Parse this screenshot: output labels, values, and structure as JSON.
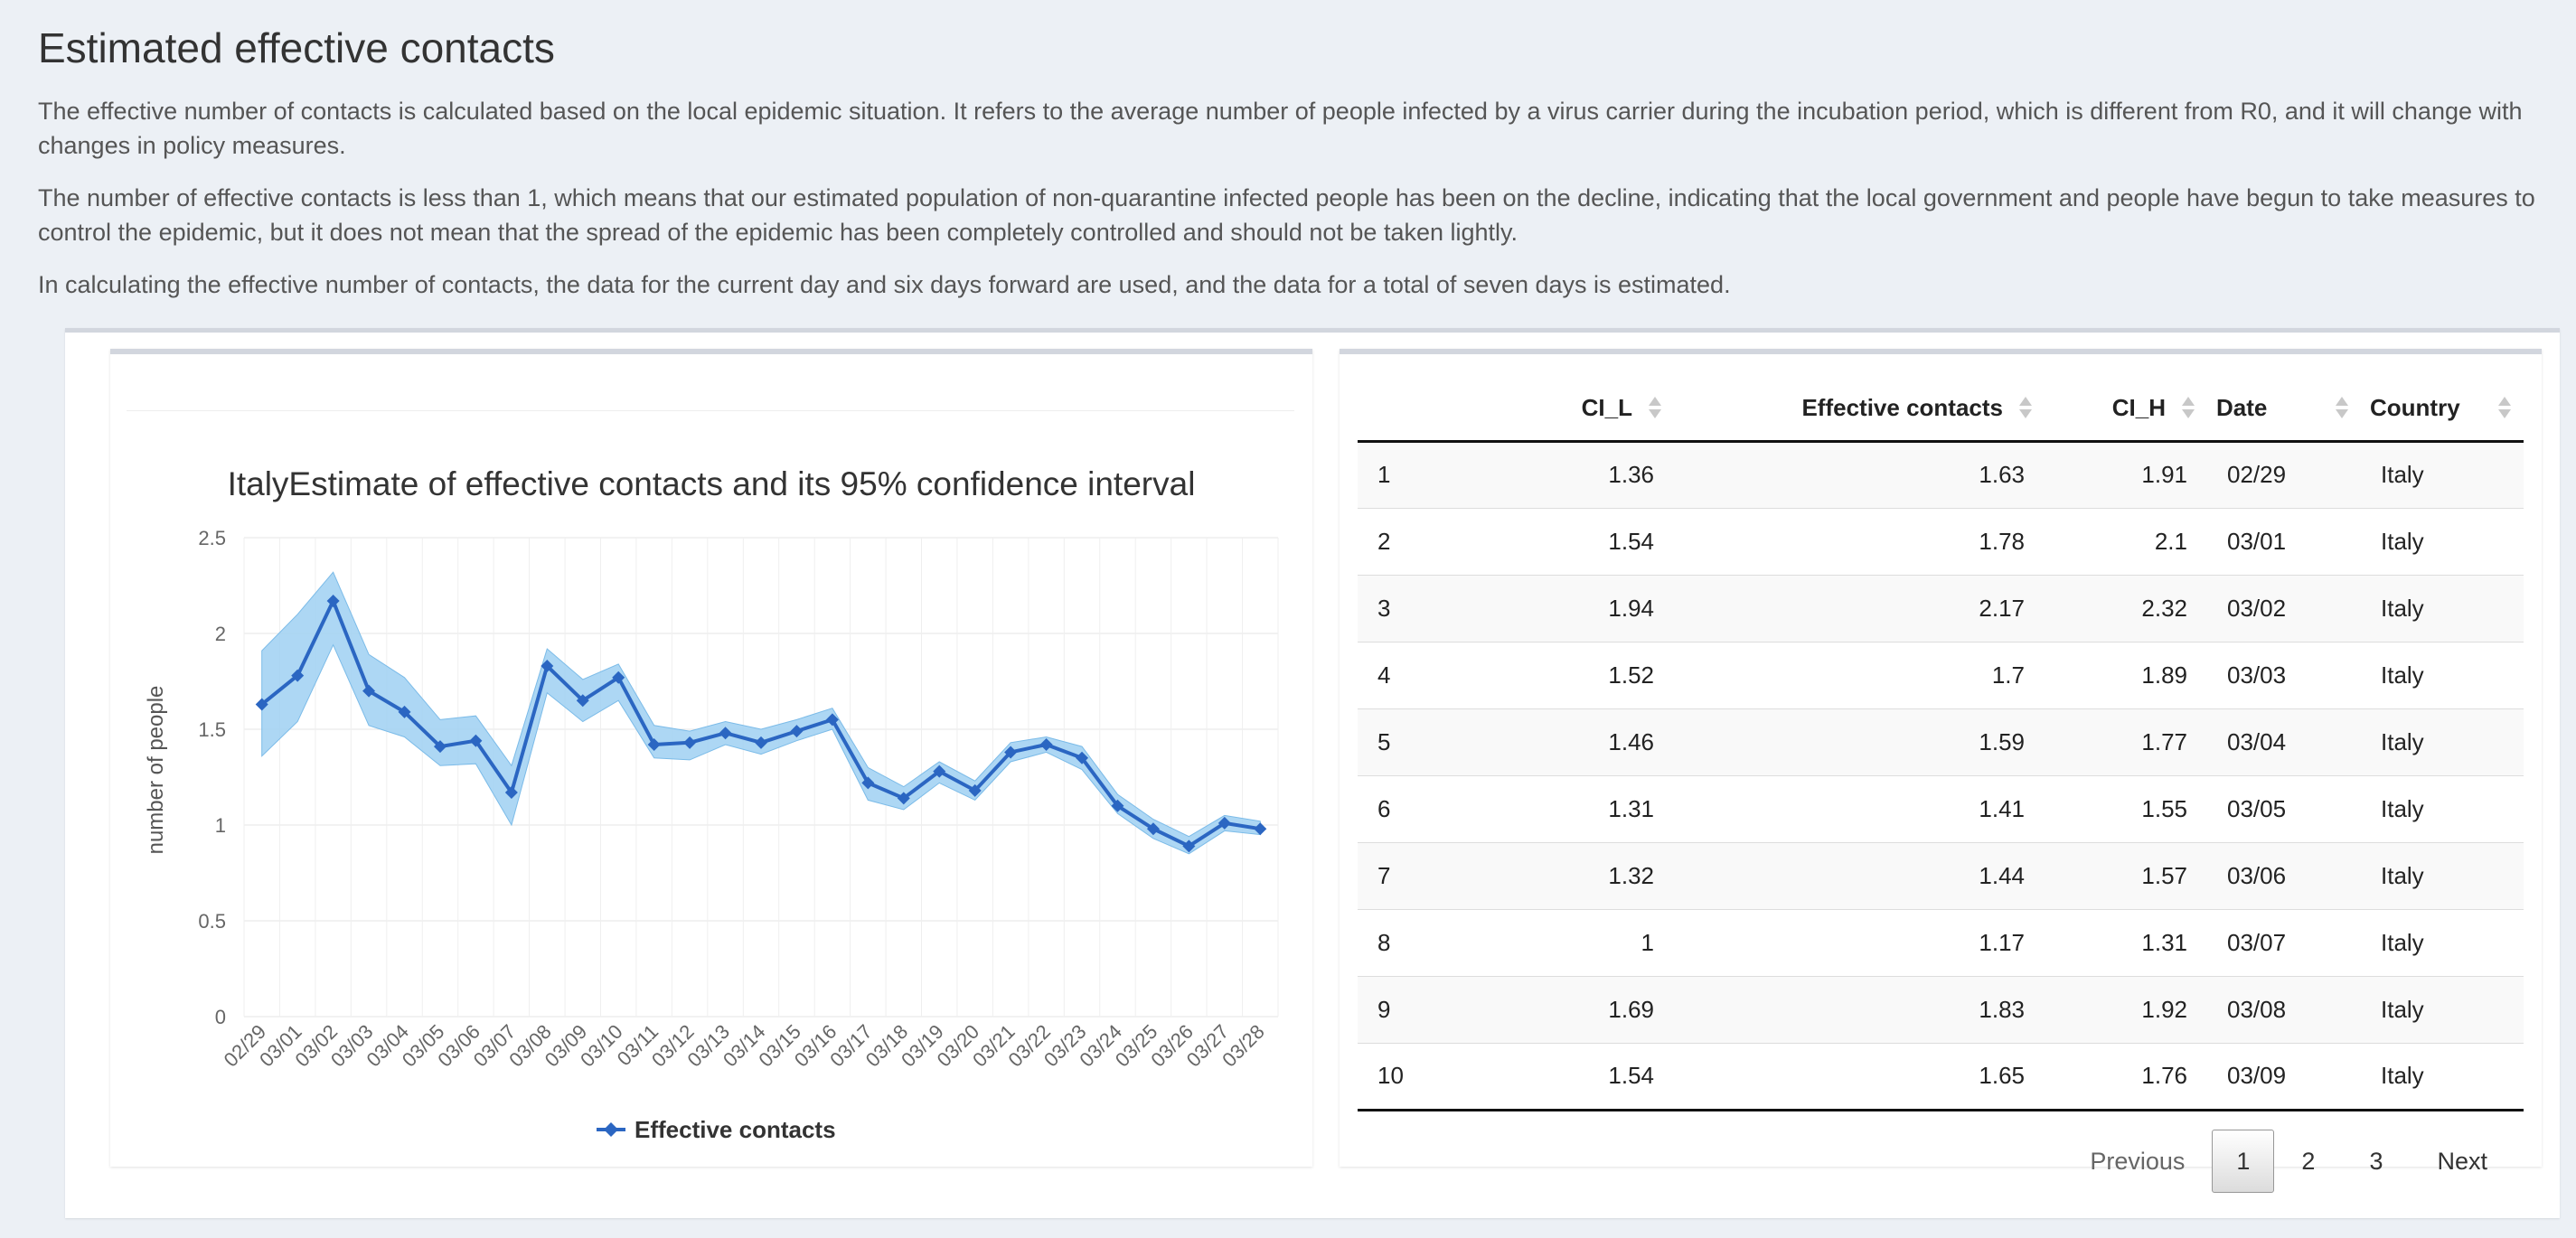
{
  "page": {
    "title": "Estimated effective contacts",
    "paragraphs": [
      "The effective number of contacts is calculated based on the local epidemic situation. It refers to the average number of people infected by a virus carrier during the incubation period, which is different from R0, and it will change with changes in policy measures.",
      "The number of effective contacts is less than 1, which means that our estimated population of non-quarantine infected people has been on the decline, indicating that the local government and people have begun to take measures to control the epidemic, but it does not mean that the spread of the epidemic has been completely controlled and should not be taken lightly.",
      "In calculating the effective number of contacts, the data for the current day and six days forward are used, and the data for a total of seven days is estimated."
    ]
  },
  "chart_data": {
    "type": "line",
    "title": "ItalyEstimate of effective contacts and its 95% confidence interval",
    "ylabel": "number of people",
    "xlabel": "",
    "ylim": [
      0,
      2.5
    ],
    "yticks": [
      "0",
      "0.5",
      "1",
      "1.5",
      "2",
      "2.5"
    ],
    "grid": true,
    "legend": "bottom-center",
    "colors": {
      "line": "#2b66c2",
      "band": "#9fd0f2",
      "band_edge": "#7bbbe8"
    },
    "categories": [
      "02/29",
      "03/01",
      "03/02",
      "03/03",
      "03/04",
      "03/05",
      "03/06",
      "03/07",
      "03/08",
      "03/09",
      "03/10",
      "03/11",
      "03/12",
      "03/13",
      "03/14",
      "03/15",
      "03/16",
      "03/17",
      "03/18",
      "03/19",
      "03/20",
      "03/21",
      "03/22",
      "03/23",
      "03/24",
      "03/25",
      "03/26",
      "03/27",
      "03/28"
    ],
    "series": [
      {
        "name": "Effective contacts",
        "values": [
          1.63,
          1.78,
          2.17,
          1.7,
          1.59,
          1.41,
          1.44,
          1.17,
          1.83,
          1.65,
          1.77,
          1.42,
          1.43,
          1.48,
          1.43,
          1.49,
          1.55,
          1.22,
          1.14,
          1.28,
          1.18,
          1.38,
          1.42,
          1.35,
          1.1,
          0.98,
          0.89,
          1.01,
          0.98
        ]
      }
    ],
    "ci_low": [
      1.36,
      1.54,
      1.94,
      1.52,
      1.46,
      1.31,
      1.32,
      1.0,
      1.69,
      1.54,
      1.65,
      1.35,
      1.34,
      1.42,
      1.37,
      1.44,
      1.5,
      1.13,
      1.08,
      1.22,
      1.13,
      1.33,
      1.38,
      1.29,
      1.06,
      0.93,
      0.85,
      0.97,
      0.95
    ],
    "ci_high": [
      1.91,
      2.1,
      2.32,
      1.89,
      1.77,
      1.55,
      1.57,
      1.31,
      1.92,
      1.76,
      1.84,
      1.52,
      1.49,
      1.54,
      1.5,
      1.55,
      1.61,
      1.3,
      1.2,
      1.33,
      1.23,
      1.43,
      1.46,
      1.41,
      1.16,
      1.03,
      0.94,
      1.05,
      1.02
    ]
  },
  "table": {
    "columns": [
      "",
      "CI_L",
      "Effective contacts",
      "CI_H",
      "Date",
      "Country"
    ],
    "rows": [
      [
        "1",
        "1.36",
        "1.63",
        "1.91",
        "02/29",
        "Italy"
      ],
      [
        "2",
        "1.54",
        "1.78",
        "2.1",
        "03/01",
        "Italy"
      ],
      [
        "3",
        "1.94",
        "2.17",
        "2.32",
        "03/02",
        "Italy"
      ],
      [
        "4",
        "1.52",
        "1.7",
        "1.89",
        "03/03",
        "Italy"
      ],
      [
        "5",
        "1.46",
        "1.59",
        "1.77",
        "03/04",
        "Italy"
      ],
      [
        "6",
        "1.31",
        "1.41",
        "1.55",
        "03/05",
        "Italy"
      ],
      [
        "7",
        "1.32",
        "1.44",
        "1.57",
        "03/06",
        "Italy"
      ],
      [
        "8",
        "1",
        "1.17",
        "1.31",
        "03/07",
        "Italy"
      ],
      [
        "9",
        "1.69",
        "1.83",
        "1.92",
        "03/08",
        "Italy"
      ],
      [
        "10",
        "1.54",
        "1.65",
        "1.76",
        "03/09",
        "Italy"
      ]
    ]
  },
  "pager": {
    "previous": "Previous",
    "pages": [
      "1",
      "2",
      "3"
    ],
    "current": "1",
    "next": "Next"
  }
}
